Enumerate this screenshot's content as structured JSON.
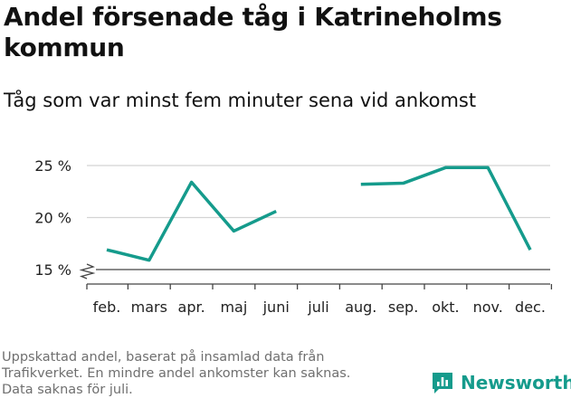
{
  "header": {
    "title": "Andel försenade tåg i Katrineholms kommun",
    "subtitle": "Tåg som var minst fem minuter sena vid ankomst"
  },
  "footer": {
    "note_line1": "Uppskattad andel, baserat på insamlad data från",
    "note_line2": "Trafikverket. En mindre andel ankomster kan saknas.",
    "note_line3": "Data saknas för juli.",
    "brand": "Newsworthy",
    "brand_icon": "newsworthy-logo-icon"
  },
  "colors": {
    "line": "#159b8c",
    "grid": "#d4d4d4",
    "axis": "#444444",
    "brand": "#159b8c"
  },
  "chart_data": {
    "type": "line",
    "categories": [
      "feb.",
      "mars",
      "apr.",
      "maj",
      "juni",
      "juli",
      "aug.",
      "sep.",
      "okt.",
      "nov.",
      "dec."
    ],
    "series": [
      {
        "values": [
          16.9,
          15.9,
          23.4,
          18.7,
          20.6,
          null,
          23.2,
          23.3,
          24.8,
          24.8,
          16.9
        ]
      }
    ],
    "y_ticks": [
      15,
      20,
      25
    ],
    "y_tick_labels": [
      "15 %",
      "20 %",
      "25 %"
    ],
    "ylim": [
      15,
      26
    ],
    "y_axis_break": true,
    "grid": true
  }
}
